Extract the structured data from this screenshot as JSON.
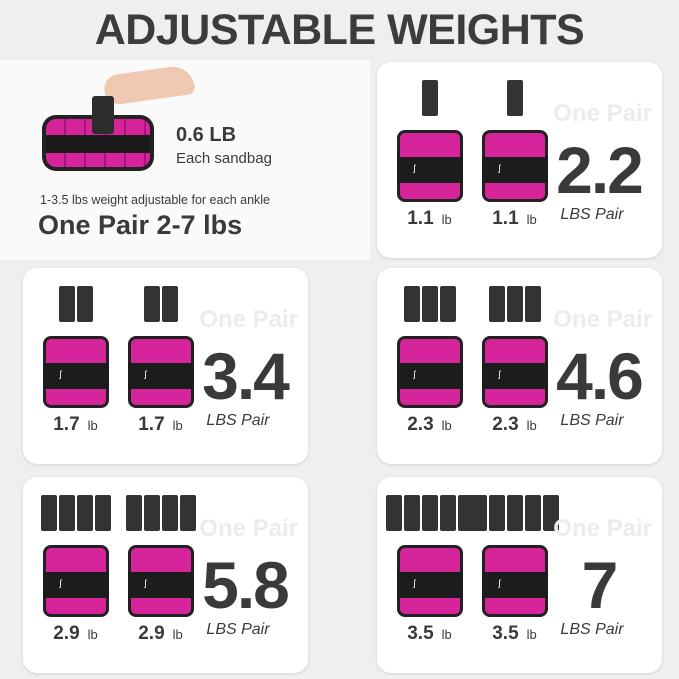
{
  "title": "ADJUSTABLE WEIGHTS",
  "intro": {
    "sandbag_weight": "0.6 LB",
    "sandbag_label": "Each sandbag",
    "adjust_text": "1-3.5 lbs weight adjustable for each ankle",
    "pair_range": "One Pair 2-7 lbs"
  },
  "colors": {
    "pink": "#d6259b",
    "dark": "#3a3a3a"
  },
  "cards": [
    {
      "sandbags": 1,
      "each": "1.1",
      "unit": "lb",
      "watermark": "One Pair",
      "total": "2.2",
      "total_label": "LBS Pair"
    },
    {
      "sandbags": 2,
      "each": "1.7",
      "unit": "lb",
      "watermark": "One Pair",
      "total": "3.4",
      "total_label": "LBS Pair"
    },
    {
      "sandbags": 3,
      "each": "2.3",
      "unit": "lb",
      "watermark": "One Pair",
      "total": "4.6",
      "total_label": "LBS Pair"
    },
    {
      "sandbags": 4,
      "each": "2.9",
      "unit": "lb",
      "watermark": "One Pair",
      "total": "5.8",
      "total_label": "LBS Pair"
    },
    {
      "sandbags": 5,
      "each": "3.5",
      "unit": "lb",
      "watermark": "One Pair",
      "total": "7",
      "total_label": "LBS Pair"
    }
  ]
}
